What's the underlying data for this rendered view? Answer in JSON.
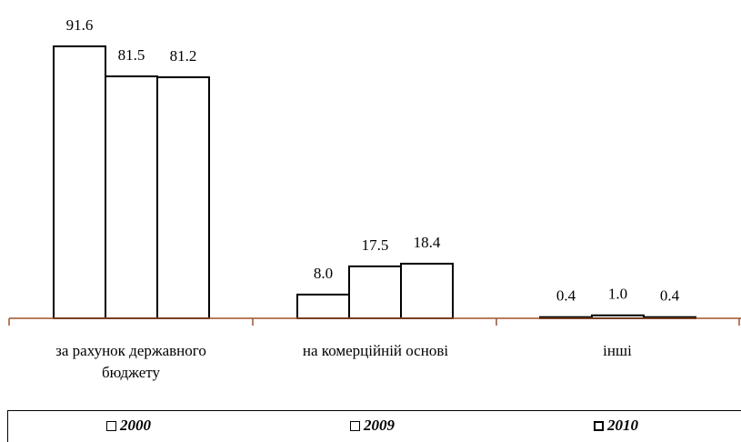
{
  "chart_data": {
    "type": "bar",
    "categories": [
      "за рахунок державного бюджету",
      "на комерційній основі",
      "інші"
    ],
    "series": [
      {
        "name": "2000",
        "values": [
          91.6,
          8.0,
          0.4
        ]
      },
      {
        "name": "2009",
        "values": [
          81.5,
          17.5,
          1.0
        ]
      },
      {
        "name": "2010",
        "values": [
          81.2,
          18.4,
          0.4
        ]
      }
    ],
    "value_labels": [
      [
        "91.6",
        "8.0",
        "0.4"
      ],
      [
        "81.5",
        "17.5",
        "1.0"
      ],
      [
        "81.2",
        "18.4",
        "0.4"
      ]
    ],
    "title": "",
    "xlabel": "",
    "ylabel": "",
    "ylim": [
      0,
      100
    ],
    "grid": false,
    "legend_position": "bottom",
    "colors": {
      "bar_fill": "#ffffff",
      "bar_stroke": "#000000",
      "axis": "#a0522d"
    }
  }
}
